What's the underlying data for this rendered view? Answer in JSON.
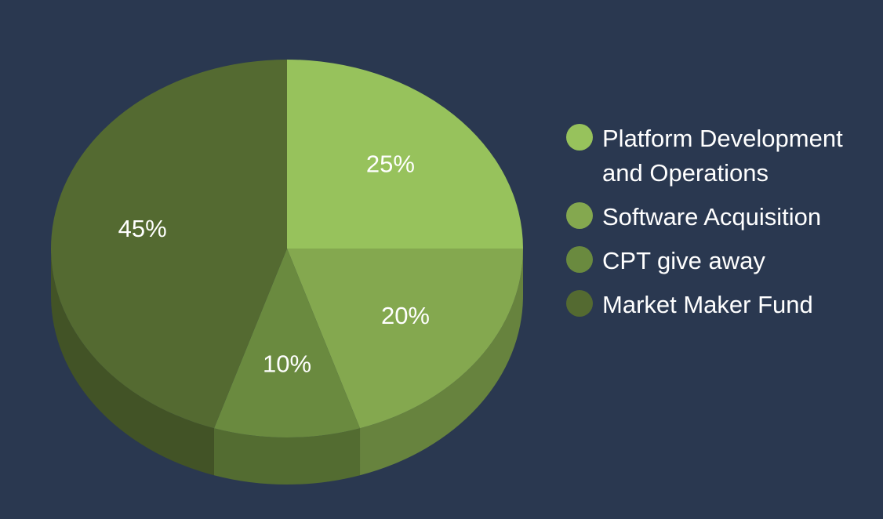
{
  "chart_data": {
    "type": "pie",
    "title": "",
    "categories": [
      "Platform Development and Operations",
      "Software Acquisition",
      "CPT give away",
      "Market Maker Fund"
    ],
    "values": [
      25,
      20,
      10,
      45
    ],
    "value_labels": [
      "25%",
      "20%",
      "10%",
      "45%"
    ],
    "colors": [
      "#97c25c",
      "#84a84f",
      "#6a8a3f",
      "#546a31"
    ],
    "legend_placement": "right",
    "style": "3d"
  },
  "legend": {
    "items": [
      {
        "label": "Platform Development and Operations",
        "color": "#97c25c"
      },
      {
        "label": "Software Acquisition",
        "color": "#84a84f"
      },
      {
        "label": "CPT give away",
        "color": "#6a8a3f"
      },
      {
        "label": "Market Maker Fund",
        "color": "#546a31"
      }
    ]
  },
  "background_color": "#2a3850"
}
